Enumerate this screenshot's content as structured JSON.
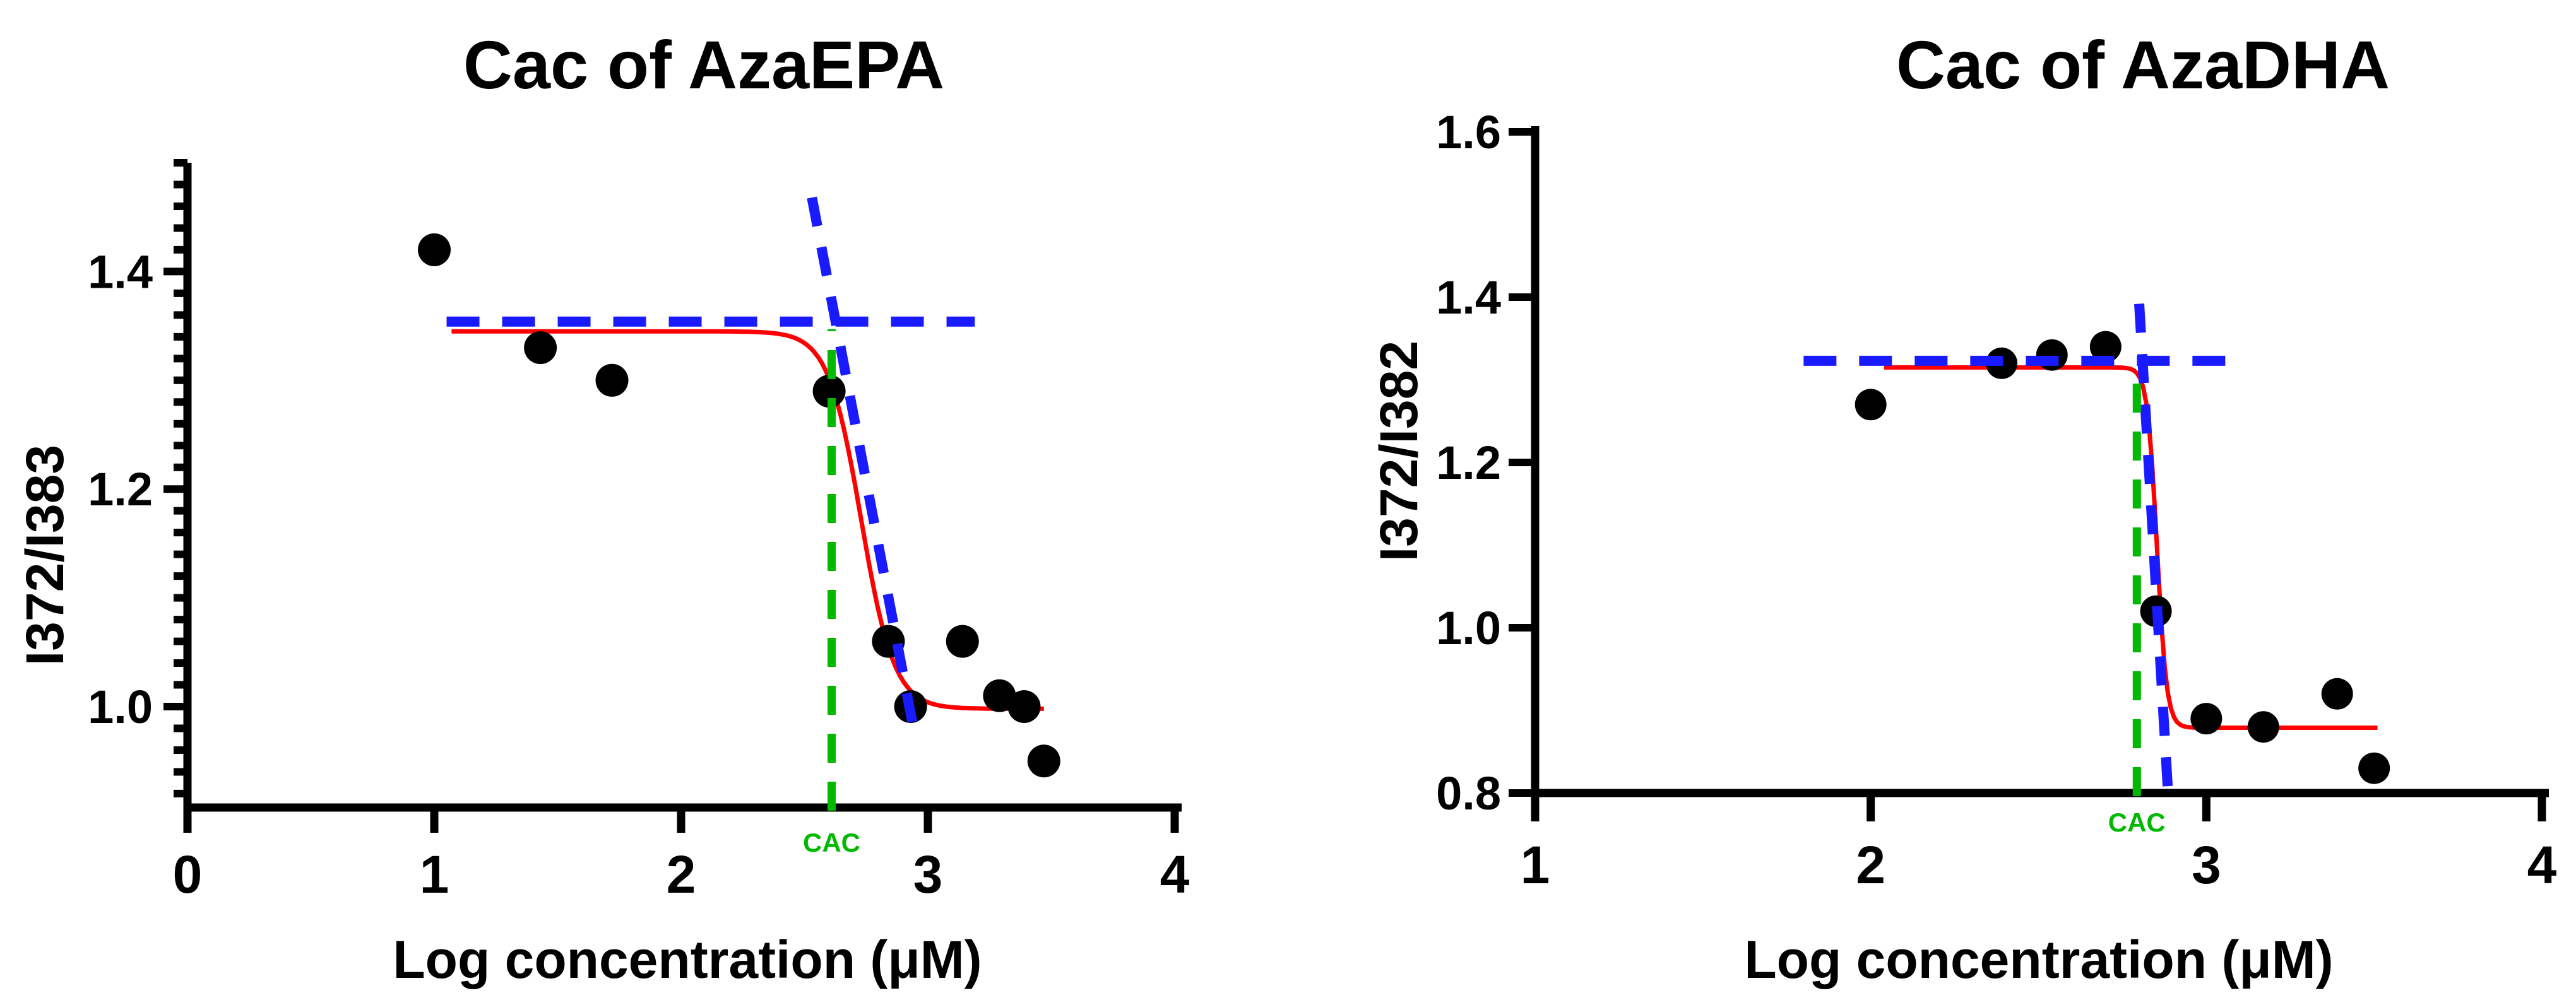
{
  "figure": {
    "background": "#ffffff"
  },
  "colors": {
    "points": "#000000",
    "fit_curve": "#ff0000",
    "guide_lines": "#1a1aff",
    "cac_line": "#00b900",
    "cac_label": "#00b900",
    "axis": "#000000",
    "text": "#000000"
  },
  "chart_data": [
    {
      "type": "scatter",
      "title": "Cac of AzaEPA",
      "xlabel": "Log concentration (μM)",
      "ylabel": "I372/I383",
      "xlim": [
        0,
        4
      ],
      "ylim": [
        0.9072,
        1.5
      ],
      "grid": false,
      "x_ticks": [
        {
          "value": 0,
          "label": "0"
        },
        {
          "value": 1,
          "label": "1"
        },
        {
          "value": 2,
          "label": "2"
        },
        {
          "value": 3,
          "label": "3"
        },
        {
          "value": 4,
          "label": "4"
        }
      ],
      "y_ticks": [
        {
          "value": 1.0,
          "label": "1.0"
        },
        {
          "value": 1.2,
          "label": "1.2"
        },
        {
          "value": 1.4,
          "label": "1.4"
        }
      ],
      "y_minor_ticks": {
        "start": 0.92,
        "end": 1.5,
        "step": 0.02
      },
      "points": [
        [
          1.0,
          1.42
        ],
        [
          1.43,
          1.33
        ],
        [
          1.72,
          1.3
        ],
        [
          2.6,
          1.29
        ],
        [
          2.84,
          1.06
        ],
        [
          2.93,
          1.0
        ],
        [
          3.14,
          1.06
        ],
        [
          3.29,
          1.01
        ],
        [
          3.39,
          1.0
        ],
        [
          3.47,
          0.95
        ]
      ],
      "fit_curve": {
        "model": "sigmoid",
        "top": 1.345,
        "bottom": 0.998,
        "logx50": 2.73,
        "hill": 6.5,
        "x_range": [
          1.07,
          3.47
        ]
      },
      "plateau_guide": {
        "y": 1.354,
        "x_range": [
          1.05,
          3.19
        ]
      },
      "tangent_guide": {
        "from": [
          2.53,
          1.468
        ],
        "to": [
          2.95,
          0.97
        ]
      },
      "cac": {
        "x": 2.61,
        "label": "CAC",
        "y_top": 1.347
      }
    },
    {
      "type": "scatter",
      "title": "Cac of AzaDHA",
      "xlabel": "Log concentration (μM)",
      "ylabel": "I372/I382",
      "xlim": [
        1,
        4
      ],
      "ylim": [
        0.8,
        1.6
      ],
      "grid": false,
      "x_ticks": [
        {
          "value": 1,
          "label": "1"
        },
        {
          "value": 2,
          "label": "2"
        },
        {
          "value": 3,
          "label": "3"
        },
        {
          "value": 4,
          "label": "4"
        }
      ],
      "y_ticks": [
        {
          "value": 0.8,
          "label": "0.8"
        },
        {
          "value": 1.0,
          "label": "1.0"
        },
        {
          "value": 1.2,
          "label": "1.2"
        },
        {
          "value": 1.4,
          "label": "1.4"
        },
        {
          "value": 1.6,
          "label": "1.6"
        }
      ],
      "y_minor_ticks": null,
      "points": [
        [
          2.0,
          1.27
        ],
        [
          2.39,
          1.32
        ],
        [
          2.54,
          1.33
        ],
        [
          2.7,
          1.34
        ],
        [
          2.85,
          1.02
        ],
        [
          3.0,
          0.89
        ],
        [
          3.17,
          0.88
        ],
        [
          3.39,
          0.92
        ],
        [
          3.5,
          0.83
        ]
      ],
      "fit_curve": {
        "model": "sigmoid",
        "top": 1.315,
        "bottom": 0.879,
        "logx50": 2.853,
        "hill": 30,
        "x_range": [
          2.04,
          3.51
        ]
      },
      "plateau_guide": {
        "y": 1.323,
        "x_range": [
          1.8,
          3.08
        ]
      },
      "tangent_guide": {
        "from": [
          2.8,
          1.392
        ],
        "to": [
          2.886,
          0.8
        ]
      },
      "cac": {
        "x": 2.793,
        "label": "CAC",
        "y_top": 1.313
      }
    }
  ]
}
